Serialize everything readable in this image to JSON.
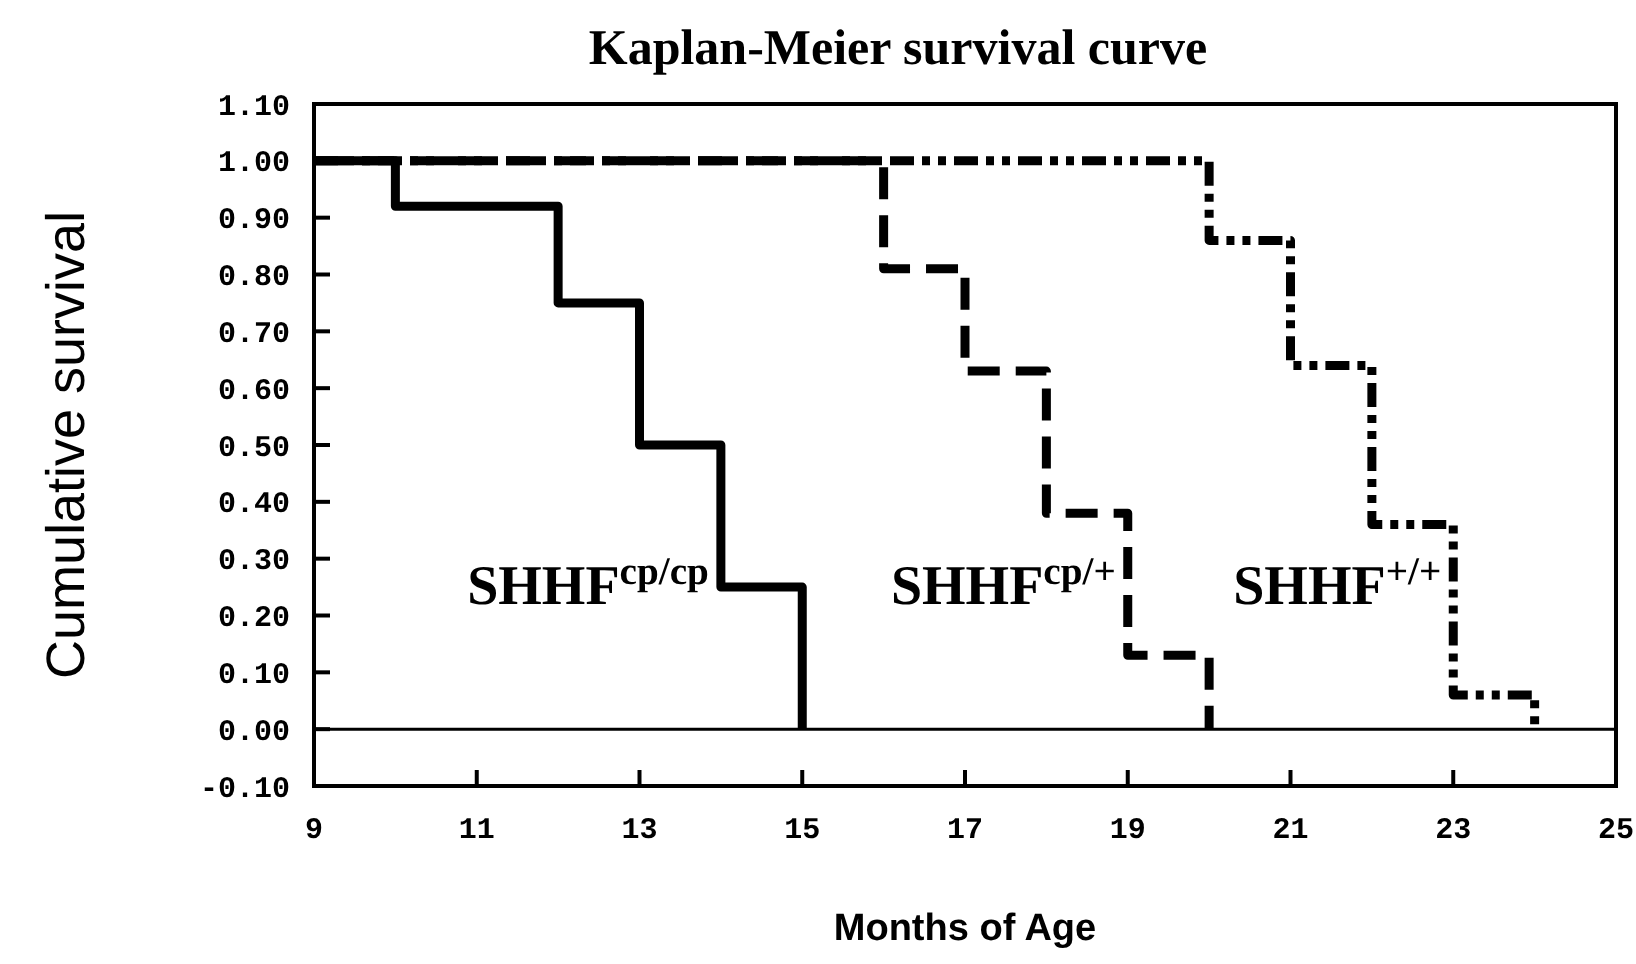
{
  "chart_data": {
    "type": "step",
    "title": "Kaplan-Meier survival curve",
    "xlabel": "Months of Age",
    "ylabel": "Cumulative survival",
    "xlim": [
      9,
      25
    ],
    "xticks": [
      9,
      11,
      13,
      15,
      17,
      19,
      21,
      23,
      25
    ],
    "ylim": [
      -0.1,
      1.1
    ],
    "yticks": [
      {
        "value": -0.1,
        "label": "-0.10"
      },
      {
        "value": 0,
        "label": "0.00"
      },
      {
        "value": 0.1,
        "label": "0.10"
      },
      {
        "value": 0.2,
        "label": "0.20"
      },
      {
        "value": 0.3,
        "label": "0.30"
      },
      {
        "value": 0.4,
        "label": "0.40"
      },
      {
        "value": 0.5,
        "label": "0.50"
      },
      {
        "value": 0.6,
        "label": "0.60"
      },
      {
        "value": 0.7,
        "label": "0.70"
      },
      {
        "value": 0.8,
        "label": "0.80"
      },
      {
        "value": 0.9,
        "label": "0.90"
      },
      {
        "value": 1.0,
        "label": "1.00"
      },
      {
        "value": 1.1,
        "label": "1.10"
      }
    ],
    "grid": false,
    "marker": "none",
    "ref_lines": [
      {
        "axis": "y",
        "value": 0,
        "color": "#000000"
      }
    ],
    "series": [
      {
        "name": "SHHF$^{cp/cp}$",
        "color": "#000000",
        "line_style": "solid",
        "x": [
          9,
          10,
          12,
          13,
          14,
          15
        ],
        "values": [
          1.0,
          0.92,
          0.75,
          0.5,
          0.25,
          0
        ]
      },
      {
        "name": "SHHF$^{cp/+}$",
        "color": "#000000",
        "line_style": "dashed",
        "x": [
          9,
          16,
          17,
          18,
          19,
          20
        ],
        "values": [
          1.0,
          0.81,
          0.63,
          0.38,
          0.13,
          0
        ]
      },
      {
        "name": "SHHF$^{+/+}$",
        "color": "#000000",
        "line_style": "dashdot",
        "x": [
          9,
          20,
          21,
          22,
          23,
          24
        ],
        "values": [
          1.0,
          0.86,
          0.64,
          0.36,
          0.06,
          0
        ]
      }
    ]
  }
}
